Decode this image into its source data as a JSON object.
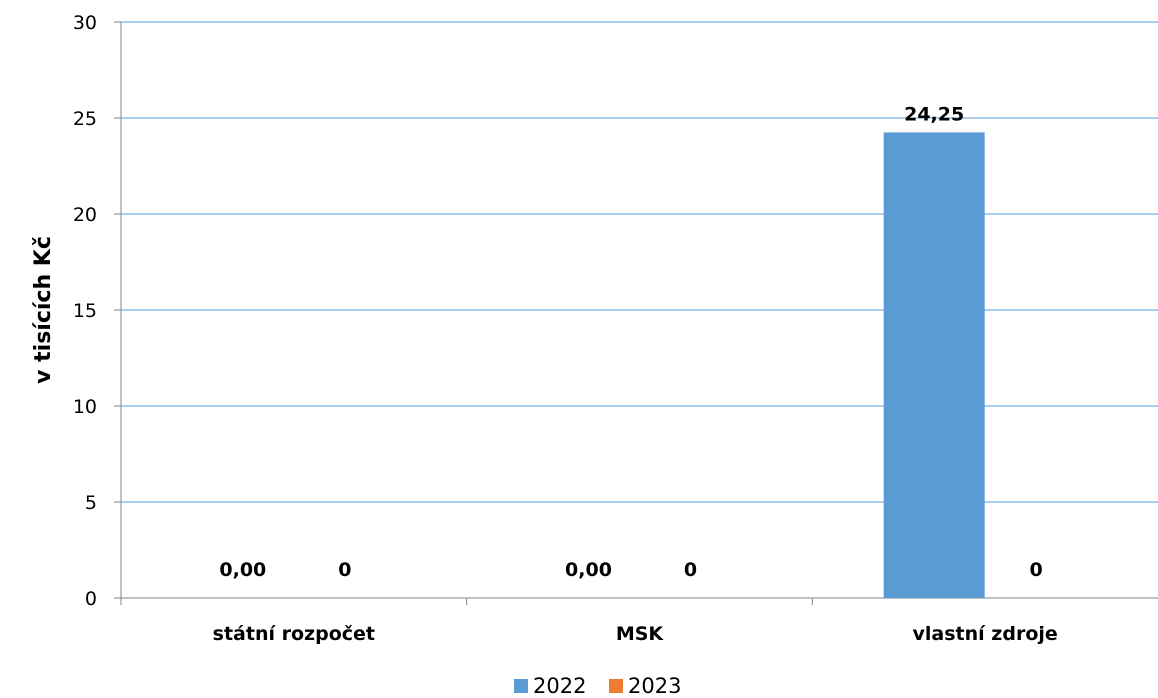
{
  "chart_data": {
    "type": "bar",
    "title": "",
    "xlabel": "",
    "ylabel": "v tisících Kč",
    "ylim": [
      0,
      30
    ],
    "yticks": [
      0,
      5,
      10,
      15,
      20,
      25,
      30
    ],
    "grid": true,
    "legend_position": "bottom",
    "categories": [
      "státní rozpočet",
      "MSK",
      "vlastní zdroje"
    ],
    "series": [
      {
        "name": "2022",
        "color": "#5b9bd5",
        "values": [
          0,
          0,
          24.25
        ],
        "labels": [
          "0,00",
          "0,00",
          "24,25"
        ]
      },
      {
        "name": "2023",
        "color": "#ed7d31",
        "values": [
          0,
          0,
          0
        ],
        "labels": [
          "0",
          "0",
          "0"
        ]
      }
    ]
  }
}
